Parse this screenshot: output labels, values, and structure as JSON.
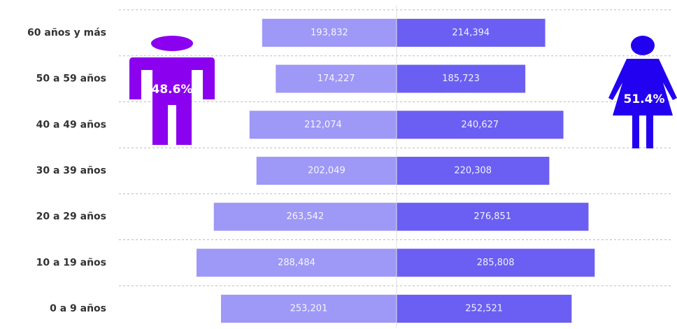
{
  "chart_data": {
    "type": "bar",
    "categories": [
      "60 años y más",
      "50 a 59 años",
      "40 a 49 años",
      "30 a 39 años",
      "20 a 29 años",
      "10 a 19 años",
      "0 a 9 años"
    ],
    "series": [
      {
        "color": "#9e98f6",
        "values": [
          193832,
          174227,
          212074,
          202049,
          263542,
          288484,
          253201
        ],
        "value_labels": [
          "193,832",
          "174,227",
          "212,074",
          "202,049",
          "263,542",
          "288,484",
          "253,201"
        ]
      },
      {
        "color": "#6a5ff2",
        "values": [
          214394,
          185723,
          240627,
          220308,
          276851,
          285808,
          252521
        ],
        "value_labels": [
          "214,394",
          "185,723",
          "240,627",
          "220,308",
          "276,851",
          "285,808",
          "252,521"
        ]
      }
    ],
    "annotations": [
      "48.6%",
      "51.4%"
    ],
    "grid": true
  }
}
